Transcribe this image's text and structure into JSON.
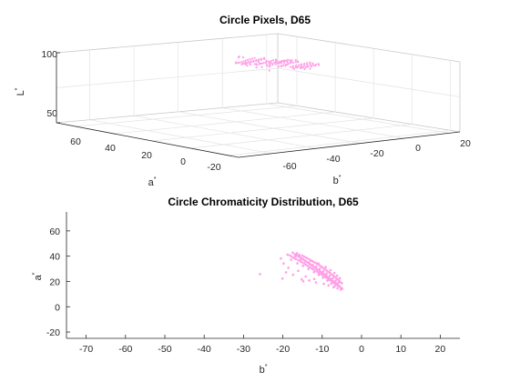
{
  "chart_data": [
    {
      "type": "scatter",
      "projection": "3d",
      "title": "Circle Pixels, D65",
      "zlabel": "L",
      "xlabel": "b",
      "ylabel": "a",
      "label_superscript": "*",
      "b_ticks": [
        "-60",
        "-40",
        "-20",
        "0",
        "20"
      ],
      "a_ticks": [
        "60",
        "40",
        "20",
        "0",
        "-20"
      ],
      "l_ticks": [
        "100",
        "50"
      ],
      "b_range": [
        -75,
        25
      ],
      "a_range": [
        -25,
        70
      ],
      "l_range": [
        50,
        100
      ],
      "marker_color": "#ff9fe6",
      "grid": true
    },
    {
      "type": "scatter",
      "title": "Circle Chromaticity Distribution, D65",
      "xlabel": "b",
      "ylabel": "a",
      "label_superscript": "*",
      "x_ticks": [
        "-70",
        "-60",
        "-50",
        "-40",
        "-30",
        "-20",
        "-10",
        "0",
        "10",
        "20"
      ],
      "y_ticks": [
        "60",
        "40",
        "20",
        "0",
        "-20"
      ],
      "xlim": [
        -75,
        25
      ],
      "ylim": [
        -25,
        75
      ],
      "marker_color": "#ff9fe6",
      "points": [
        [
          -17.5,
          42.8
        ],
        [
          -17,
          41.6
        ],
        [
          -16.6,
          40.9
        ],
        [
          -16.2,
          40.2
        ],
        [
          -15.9,
          39.5
        ],
        [
          -15.5,
          38.9
        ],
        [
          -15.2,
          38.1
        ],
        [
          -14.8,
          37.4
        ],
        [
          -14.4,
          36.6
        ],
        [
          -14.1,
          35.8
        ],
        [
          -13.7,
          35.1
        ],
        [
          -13.3,
          34.2
        ],
        [
          -13,
          33.5
        ],
        [
          -12.6,
          32.6
        ],
        [
          -12.2,
          31.8
        ],
        [
          -11.8,
          30.9
        ],
        [
          -11.5,
          30.2
        ],
        [
          -11.1,
          29.3
        ],
        [
          -10.7,
          28.4
        ],
        [
          -10.3,
          27.6
        ],
        [
          -10,
          26.8
        ],
        [
          -9.6,
          26
        ],
        [
          -9.2,
          25.1
        ],
        [
          -8.9,
          24.2
        ],
        [
          -8.5,
          23.3
        ],
        [
          -8.1,
          22.4
        ],
        [
          -7.8,
          21.6
        ],
        [
          -7.4,
          20.7
        ],
        [
          -7,
          19.8
        ],
        [
          -6.6,
          18.8
        ],
        [
          -6.3,
          17.9
        ],
        [
          -5.9,
          17
        ],
        [
          -5.6,
          16.1
        ],
        [
          -5.2,
          15.1
        ],
        [
          -4.9,
          14.3
        ],
        [
          -16.4,
          42.3
        ],
        [
          -15.8,
          41.1
        ],
        [
          -15.1,
          40.5
        ],
        [
          -14.6,
          39.6
        ],
        [
          -14.1,
          38.8
        ],
        [
          -13.6,
          38
        ],
        [
          -13.1,
          37.1
        ],
        [
          -12.6,
          36.3
        ],
        [
          -12.2,
          35.4
        ],
        [
          -11.7,
          34.7
        ],
        [
          -11.3,
          33.8
        ],
        [
          -10.8,
          33
        ],
        [
          -10.4,
          32.1
        ],
        [
          -10,
          31.3
        ],
        [
          -9.6,
          30.3
        ],
        [
          -9.2,
          29.4
        ],
        [
          -8.8,
          28.5
        ],
        [
          -8.4,
          27.5
        ],
        [
          -8,
          26.6
        ],
        [
          -7.6,
          25.6
        ],
        [
          -7.2,
          24.7
        ],
        [
          -6.8,
          23.7
        ],
        [
          -6.4,
          22.6
        ],
        [
          -6.1,
          21.7
        ],
        [
          -5.7,
          20.7
        ],
        [
          -5.4,
          19.6
        ],
        [
          -5,
          18.6
        ],
        [
          -18.2,
          40.6
        ],
        [
          -17.7,
          39.5
        ],
        [
          -17.2,
          38.6
        ],
        [
          -16.7,
          37.7
        ],
        [
          -16.1,
          36.9
        ],
        [
          -15.6,
          36
        ],
        [
          -15.1,
          35.1
        ],
        [
          -14.6,
          34.2
        ],
        [
          -14.2,
          33.3
        ],
        [
          -13.7,
          32.3
        ],
        [
          -13.2,
          31.4
        ],
        [
          -12.7,
          30.5
        ],
        [
          -12.3,
          29.6
        ],
        [
          -11.8,
          28.6
        ],
        [
          -11.3,
          27.7
        ],
        [
          -10.8,
          26.8
        ],
        [
          -10.4,
          25.8
        ],
        [
          -9.9,
          24.9
        ],
        [
          -9.4,
          23.9
        ],
        [
          -9,
          23
        ],
        [
          -8.5,
          22
        ],
        [
          -8.1,
          21
        ],
        [
          -7.6,
          20.1
        ],
        [
          -7.2,
          19.1
        ],
        [
          -6.7,
          18.1
        ],
        [
          -6.2,
          17.1
        ],
        [
          -5.8,
          16.2
        ],
        [
          -16.8,
          39.9
        ],
        [
          -15.4,
          37.6
        ],
        [
          -14.3,
          35.9
        ],
        [
          -13.4,
          34.9
        ],
        [
          -12.4,
          33.1
        ],
        [
          -11.5,
          31.6
        ],
        [
          -10.6,
          30
        ],
        [
          -9.7,
          28.1
        ],
        [
          -8.9,
          26.3
        ],
        [
          -8.1,
          24.4
        ],
        [
          -7.3,
          22.6
        ],
        [
          -6.6,
          20.6
        ],
        [
          -5.9,
          18.9
        ],
        [
          -12.9,
          36.4
        ],
        [
          -11,
          34.3
        ],
        [
          -9.1,
          31.4
        ],
        [
          -7.9,
          28.9
        ],
        [
          -6.9,
          26.7
        ],
        [
          -6.2,
          24.6
        ],
        [
          -5.5,
          22.6
        ],
        [
          -17.9,
          37.2
        ],
        [
          -16.3,
          34.3
        ],
        [
          -14.9,
          32.3
        ],
        [
          -13.5,
          29.9
        ],
        [
          -12.1,
          27.4
        ],
        [
          -10.9,
          25.2
        ],
        [
          -9.8,
          22.9
        ],
        [
          -8.7,
          20.6
        ],
        [
          -7.7,
          18.2
        ],
        [
          -6.8,
          16.4
        ],
        [
          -19.2,
          27.2
        ],
        [
          -17.4,
          25.3
        ],
        [
          -15.2,
          21.6
        ],
        [
          -14.8,
          20.1
        ],
        [
          -13.3,
          20.8
        ],
        [
          -12,
          21.9
        ],
        [
          -25.8,
          25.8
        ],
        [
          -20.1,
          22.3
        ],
        [
          -11.6,
          19.2
        ],
        [
          -9.6,
          18.1
        ],
        [
          -8.4,
          16.9
        ],
        [
          -7.1,
          15.4
        ],
        [
          -6.1,
          14.6
        ],
        [
          -5.3,
          13.6
        ],
        [
          -14.2,
          23.9
        ],
        [
          -16.1,
          28.4
        ],
        [
          -18.6,
          30.8
        ],
        [
          -19.8,
          34.2
        ],
        [
          -18.8,
          41.2
        ],
        [
          -20.5,
          38.2
        ]
      ]
    }
  ]
}
